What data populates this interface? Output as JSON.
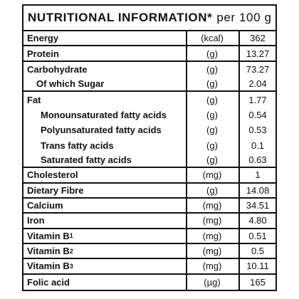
{
  "title": {
    "main": "NUTRITIONAL INFORMATION*",
    "per": "per 100 g"
  },
  "rows": [
    {
      "name": "Energy",
      "sub": "",
      "unit": "(kcal)",
      "value": "362",
      "indent": 0,
      "divider": true
    },
    {
      "name": "Protein",
      "sub": "",
      "unit": "(g)",
      "value": "13.27",
      "indent": 0,
      "divider": true
    },
    {
      "name": "Carbohydrate",
      "sub": "",
      "unit": "(g)",
      "value": "73.27",
      "indent": 0,
      "divider": false
    },
    {
      "name": "Of which Sugar",
      "sub": "",
      "unit": "(g)",
      "value": "2.04",
      "indent": 1,
      "divider": true
    },
    {
      "name": "Fat",
      "sub": "",
      "unit": "(g)",
      "value": "1.77",
      "indent": 0,
      "divider": false
    },
    {
      "name": "Monounsaturated fatty acids",
      "sub": "",
      "unit": "(g)",
      "value": "0.54",
      "indent": 2,
      "divider": false
    },
    {
      "name": "Polyunsaturated fatty acids",
      "sub": "",
      "unit": "(g)",
      "value": "0.53",
      "indent": 2,
      "divider": false
    },
    {
      "name": "Trans fatty acids",
      "sub": "",
      "unit": "(g)",
      "value": "0.1",
      "indent": 2,
      "divider": false
    },
    {
      "name": "Saturated fatty acids",
      "sub": "",
      "unit": "(g)",
      "value": "0.63",
      "indent": 2,
      "divider": true
    },
    {
      "name": "Cholesterol",
      "sub": "",
      "unit": "(mg)",
      "value": "1",
      "indent": 0,
      "divider": true
    },
    {
      "name": "Dietary Fibre",
      "sub": "",
      "unit": "(g)",
      "value": "14.08",
      "indent": 0,
      "divider": true
    },
    {
      "name": "Calcium",
      "sub": "",
      "unit": "(mg)",
      "value": "34.51",
      "indent": 0,
      "divider": true
    },
    {
      "name": "Iron",
      "sub": "",
      "unit": "(mg)",
      "value": "4.80",
      "indent": 0,
      "divider": true
    },
    {
      "name": "Vitamin B",
      "sub": "1",
      "unit": "(mg)",
      "value": "0.51",
      "indent": 0,
      "divider": true
    },
    {
      "name": "Vitamin B",
      "sub": "2",
      "unit": "(mg)",
      "value": "0.5",
      "indent": 0,
      "divider": true
    },
    {
      "name": "Vitamin B",
      "sub": "3",
      "unit": "(mg)",
      "value": "10.11",
      "indent": 0,
      "divider": true
    },
    {
      "name": "Folic acid",
      "sub": "",
      "unit": "(µg)",
      "value": "165",
      "indent": 0,
      "divider": false
    }
  ]
}
